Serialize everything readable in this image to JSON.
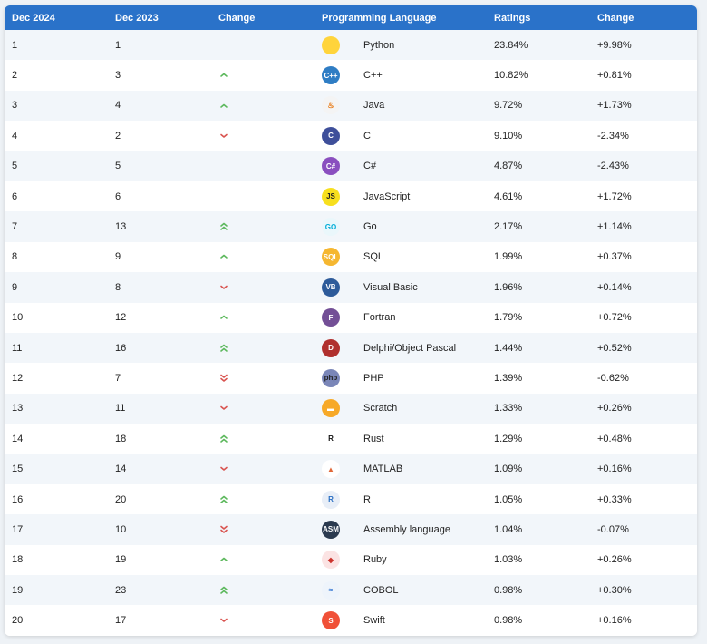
{
  "headers": [
    "Dec 2024",
    "Dec 2023",
    "Change",
    "Programming Language",
    "Ratings",
    "Change"
  ],
  "colors": {
    "header_bg": "#2a72c9",
    "up": "#5cb85c",
    "down": "#d9534f"
  },
  "rows": [
    {
      "dec2024": "1",
      "dec2023": "1",
      "trend": "none",
      "language": "Python",
      "rating": "23.84%",
      "change": "+9.98%",
      "logo_text": "",
      "logo_color": "#ffd43b",
      "logo_fg": "#3572a5"
    },
    {
      "dec2024": "2",
      "dec2023": "3",
      "trend": "up",
      "language": "C++",
      "rating": "10.82%",
      "change": "+0.81%",
      "logo_text": "C++",
      "logo_color": "#2f7dc4",
      "logo_fg": "#ffffff"
    },
    {
      "dec2024": "3",
      "dec2023": "4",
      "trend": "up",
      "language": "Java",
      "rating": "9.72%",
      "change": "+1.73%",
      "logo_text": "♨",
      "logo_color": "#f4f4f4",
      "logo_fg": "#e76f00"
    },
    {
      "dec2024": "4",
      "dec2023": "2",
      "trend": "down",
      "language": "C",
      "rating": "9.10%",
      "change": "-2.34%",
      "logo_text": "C",
      "logo_color": "#3e4f9a",
      "logo_fg": "#ffffff"
    },
    {
      "dec2024": "5",
      "dec2023": "5",
      "trend": "none",
      "language": "C#",
      "rating": "4.87%",
      "change": "-2.43%",
      "logo_text": "C#",
      "logo_color": "#8a4fbf",
      "logo_fg": "#ffffff"
    },
    {
      "dec2024": "6",
      "dec2023": "6",
      "trend": "none",
      "language": "JavaScript",
      "rating": "4.61%",
      "change": "+1.72%",
      "logo_text": "JS",
      "logo_color": "#f7df1e",
      "logo_fg": "#222222"
    },
    {
      "dec2024": "7",
      "dec2023": "13",
      "trend": "up2",
      "language": "Go",
      "rating": "2.17%",
      "change": "+1.14%",
      "logo_text": "GO",
      "logo_color": "#eaf7fb",
      "logo_fg": "#00add8"
    },
    {
      "dec2024": "8",
      "dec2023": "9",
      "trend": "up",
      "language": "SQL",
      "rating": "1.99%",
      "change": "+0.37%",
      "logo_text": "SQL",
      "logo_color": "#f5b731",
      "logo_fg": "#ffffff"
    },
    {
      "dec2024": "9",
      "dec2023": "8",
      "trend": "down",
      "language": "Visual Basic",
      "rating": "1.96%",
      "change": "+0.14%",
      "logo_text": "VB",
      "logo_color": "#2e5b9a",
      "logo_fg": "#ffffff"
    },
    {
      "dec2024": "10",
      "dec2023": "12",
      "trend": "up",
      "language": "Fortran",
      "rating": "1.79%",
      "change": "+0.72%",
      "logo_text": "F",
      "logo_color": "#734f96",
      "logo_fg": "#ffffff"
    },
    {
      "dec2024": "11",
      "dec2023": "16",
      "trend": "up2",
      "language": "Delphi/Object Pascal",
      "rating": "1.44%",
      "change": "+0.52%",
      "logo_text": "D",
      "logo_color": "#b0302e",
      "logo_fg": "#ffffff"
    },
    {
      "dec2024": "12",
      "dec2023": "7",
      "trend": "down2",
      "language": "PHP",
      "rating": "1.39%",
      "change": "-0.62%",
      "logo_text": "php",
      "logo_color": "#7a86b8",
      "logo_fg": "#222222"
    },
    {
      "dec2024": "13",
      "dec2023": "11",
      "trend": "down",
      "language": "Scratch",
      "rating": "1.33%",
      "change": "+0.26%",
      "logo_text": "▬",
      "logo_color": "#f7a928",
      "logo_fg": "#ffffff"
    },
    {
      "dec2024": "14",
      "dec2023": "18",
      "trend": "up2",
      "language": "Rust",
      "rating": "1.29%",
      "change": "+0.48%",
      "logo_text": "R",
      "logo_color": "#ffffff",
      "logo_fg": "#111111"
    },
    {
      "dec2024": "15",
      "dec2023": "14",
      "trend": "down",
      "language": "MATLAB",
      "rating": "1.09%",
      "change": "+0.16%",
      "logo_text": "▲",
      "logo_color": "#ffffff",
      "logo_fg": "#e16737"
    },
    {
      "dec2024": "16",
      "dec2023": "20",
      "trend": "up2",
      "language": "R",
      "rating": "1.05%",
      "change": "+0.33%",
      "logo_text": "R",
      "logo_color": "#e8eef7",
      "logo_fg": "#276dc3"
    },
    {
      "dec2024": "17",
      "dec2023": "10",
      "trend": "down2",
      "language": "Assembly language",
      "rating": "1.04%",
      "change": "-0.07%",
      "logo_text": "ASM",
      "logo_color": "#2b3a4f",
      "logo_fg": "#ffffff"
    },
    {
      "dec2024": "18",
      "dec2023": "19",
      "trend": "up",
      "language": "Ruby",
      "rating": "1.03%",
      "change": "+0.26%",
      "logo_text": "◆",
      "logo_color": "#fbe3e3",
      "logo_fg": "#cc342d"
    },
    {
      "dec2024": "19",
      "dec2023": "23",
      "trend": "up2",
      "language": "COBOL",
      "rating": "0.98%",
      "change": "+0.30%",
      "logo_text": "≈",
      "logo_color": "#eef4fb",
      "logo_fg": "#3b7bd4"
    },
    {
      "dec2024": "20",
      "dec2023": "17",
      "trend": "down",
      "language": "Swift",
      "rating": "0.98%",
      "change": "+0.16%",
      "logo_text": "S",
      "logo_color": "#f05138",
      "logo_fg": "#ffffff"
    }
  ]
}
